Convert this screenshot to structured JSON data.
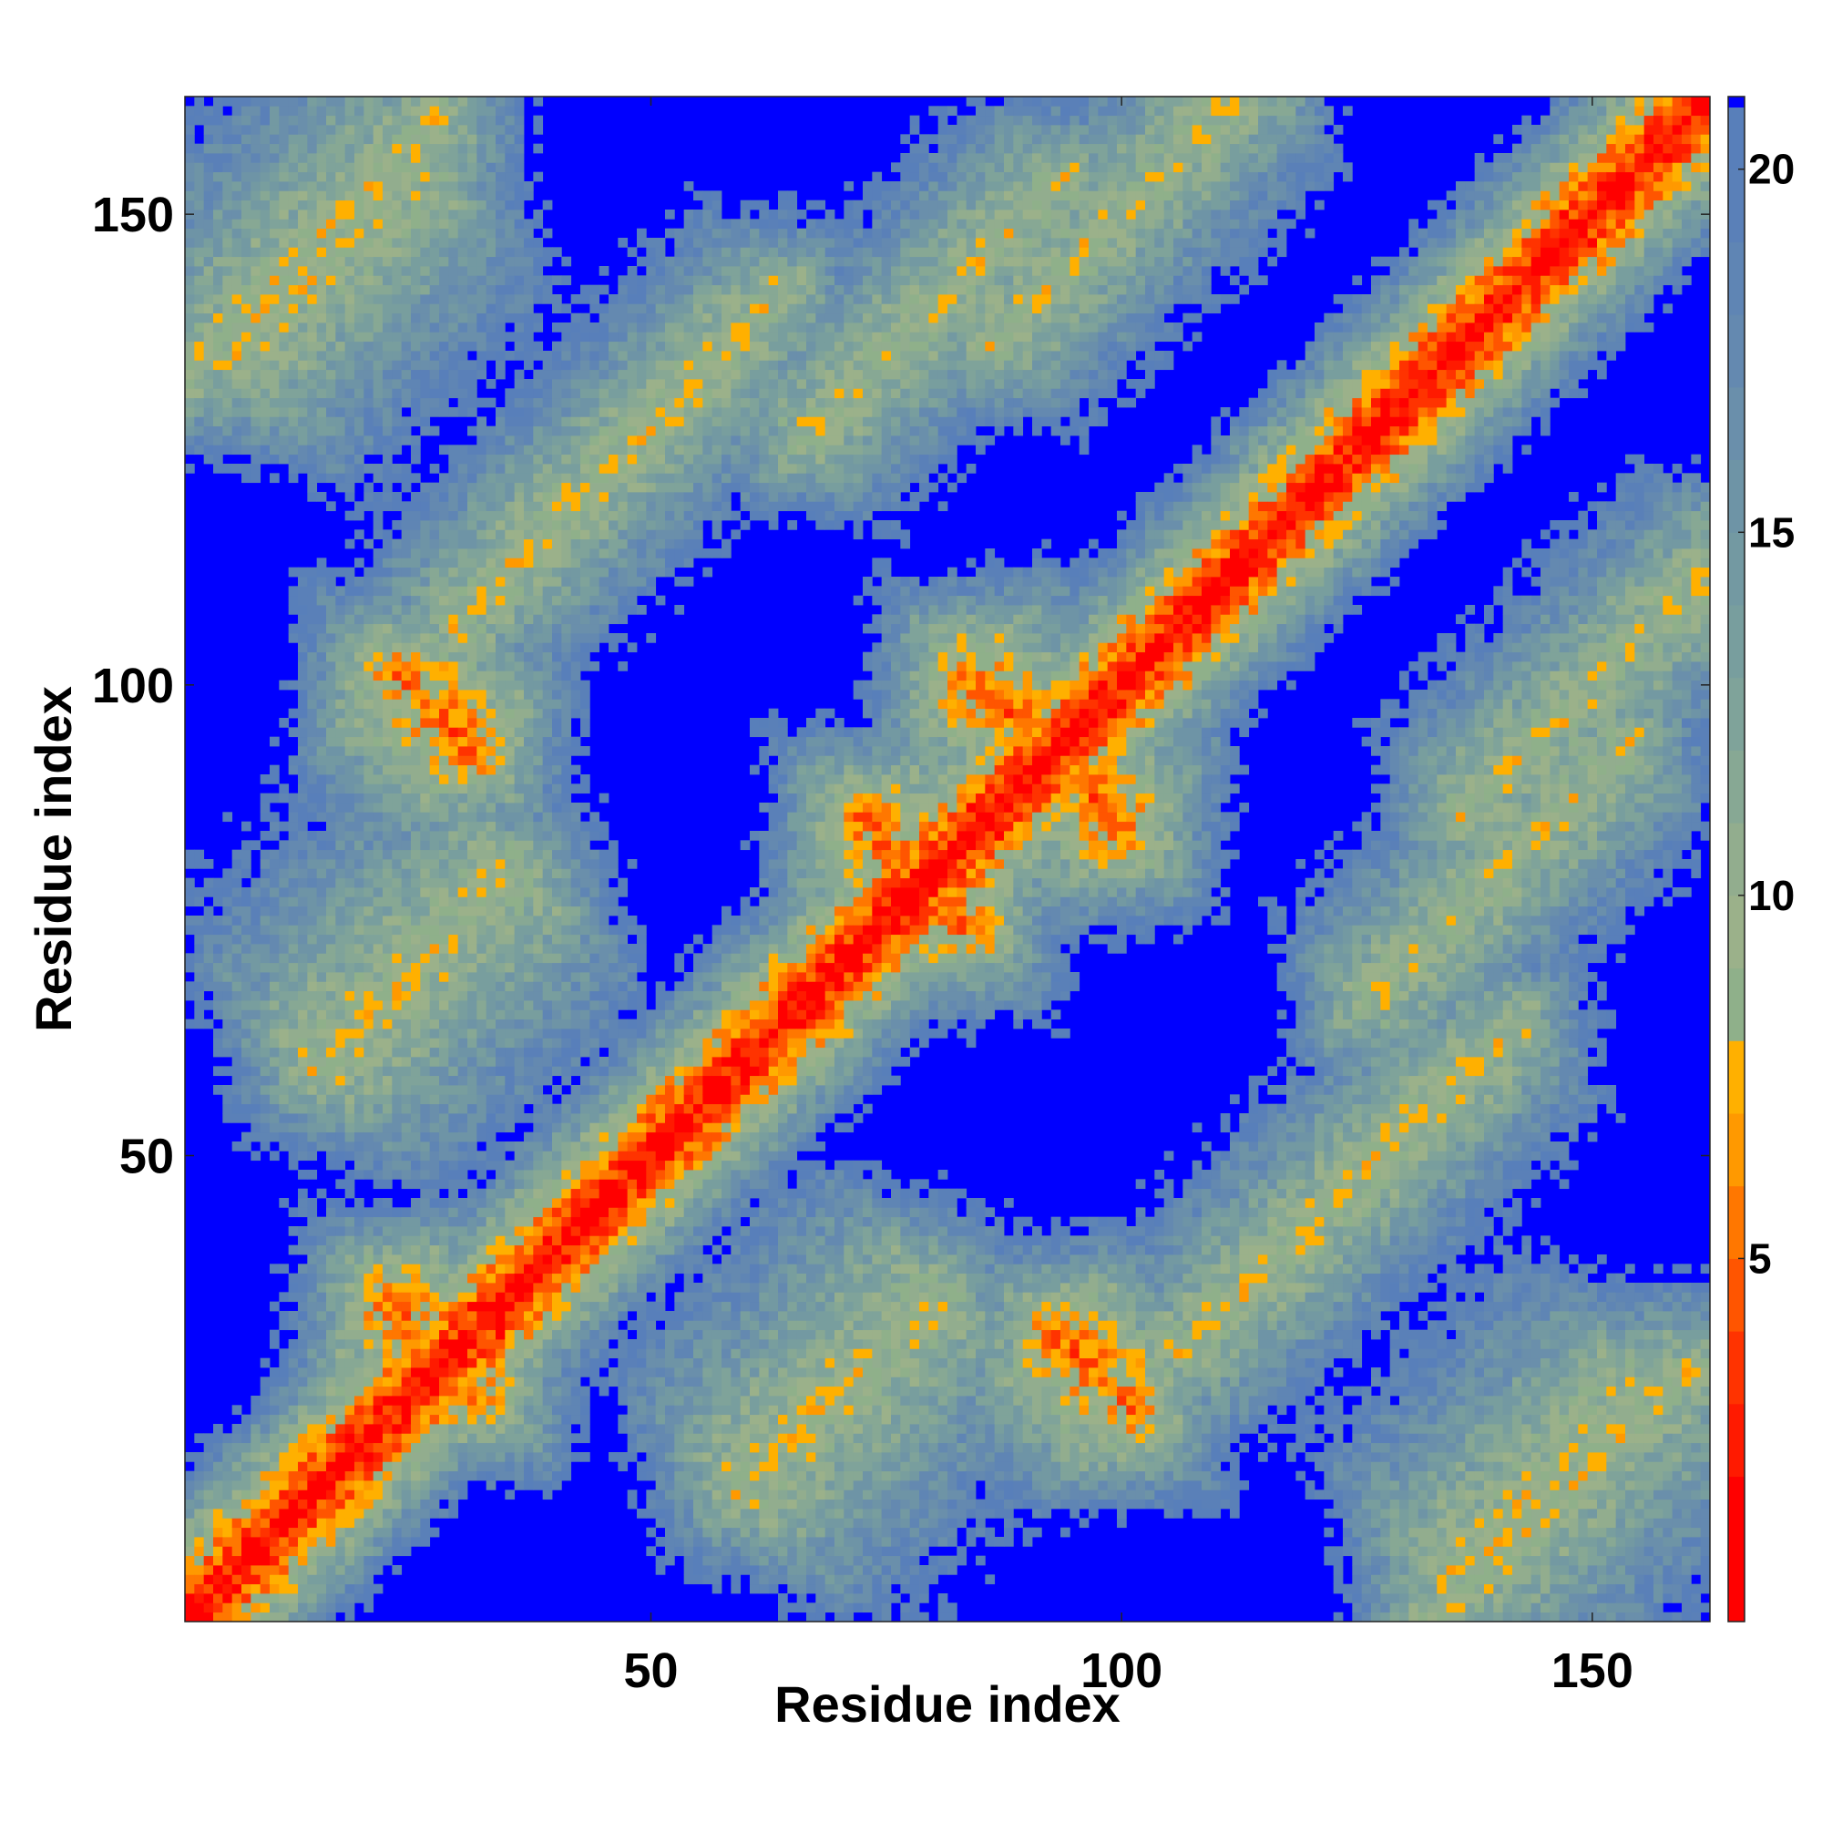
{
  "chart_data": {
    "type": "heatmap",
    "title": "",
    "xlabel": "Residue index",
    "ylabel": "Residue index",
    "n_residues": 162,
    "xlim": [
      1,
      162
    ],
    "ylim": [
      1,
      162
    ],
    "x_ticks": [
      50,
      100,
      150
    ],
    "y_ticks": [
      50,
      100,
      150
    ],
    "colorbar": {
      "range": [
        0,
        21
      ],
      "ticks": [
        5,
        10,
        15,
        20
      ],
      "saturated_color": "#0000ff",
      "levels": [
        {
          "max": 2,
          "color": "#ff0000"
        },
        {
          "max": 3,
          "color": "#ff1a00"
        },
        {
          "max": 4,
          "color": "#ff3300"
        },
        {
          "max": 5,
          "color": "#ff5500"
        },
        {
          "max": 6,
          "color": "#ff7700"
        },
        {
          "max": 7,
          "color": "#ff9900"
        },
        {
          "max": 8,
          "color": "#ffb000"
        },
        {
          "max": 9,
          "color": "#8fb08a"
        },
        {
          "max": 10,
          "color": "#9bb18a"
        },
        {
          "max": 11,
          "color": "#92ad8e"
        },
        {
          "max": 12,
          "color": "#87a894"
        },
        {
          "max": 13,
          "color": "#7fa39a"
        },
        {
          "max": 14,
          "color": "#789e9e"
        },
        {
          "max": 15,
          "color": "#7399a2"
        },
        {
          "max": 16,
          "color": "#6e94a6"
        },
        {
          "max": 17,
          "color": "#6a8fab"
        },
        {
          "max": 18,
          "color": "#6489b0"
        },
        {
          "max": 19,
          "color": "#5f85b4"
        },
        {
          "max": 20,
          "color": "#5a80b8"
        },
        {
          "max": 21,
          "color": "#587fba"
        }
      ]
    },
    "contact_features": [
      {
        "kind": "diagonal",
        "desc": "main diagonal (residue i vs i)"
      },
      {
        "kind": "antiparallel",
        "center": [
          27,
          30
        ],
        "length": 14
      },
      {
        "kind": "antiparallel",
        "center": [
          78,
          80
        ],
        "length": 16
      },
      {
        "kind": "antiparallel",
        "center": [
          92,
          93
        ],
        "length": 24
      },
      {
        "kind": "antiparallel",
        "center": [
          27,
          97
        ],
        "length": 12
      },
      {
        "kind": "antiparallel",
        "center": [
          97,
          27
        ],
        "length": 12
      },
      {
        "kind": "parallel",
        "center": [
          14,
          147
        ],
        "length": 40
      },
      {
        "kind": "parallel",
        "center": [
          147,
          14
        ],
        "length": 40
      },
      {
        "kind": "parallel",
        "center": [
          50,
          128
        ],
        "length": 40
      },
      {
        "kind": "parallel",
        "center": [
          128,
          50
        ],
        "length": 40
      },
      {
        "kind": "parallel",
        "center": [
          120,
          43
        ],
        "length": 40
      },
      {
        "kind": "parallel",
        "center": [
          43,
          120
        ],
        "length": 40
      },
      {
        "kind": "parallel",
        "center": [
          80,
          140
        ],
        "length": 40
      },
      {
        "kind": "parallel",
        "center": [
          140,
          80
        ],
        "length": 40
      },
      {
        "kind": "parallel",
        "center": [
          100,
          150
        ],
        "length": 40
      },
      {
        "kind": "parallel",
        "center": [
          150,
          100
        ],
        "length": 40
      },
      {
        "kind": "patch",
        "center": [
          25,
          70
        ],
        "length": 30
      },
      {
        "kind": "patch",
        "center": [
          70,
          25
        ],
        "length": 30
      },
      {
        "kind": "patch",
        "center": [
          145,
          15
        ],
        "length": 30
      },
      {
        "kind": "patch",
        "center": [
          15,
          145
        ],
        "length": 30
      }
    ]
  }
}
